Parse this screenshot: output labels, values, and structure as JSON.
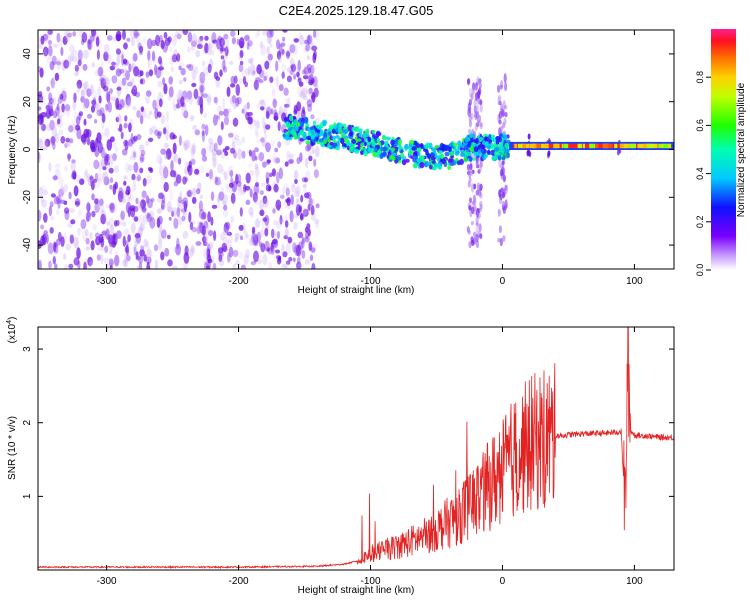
{
  "title": "C2E4.2025.129.18.47.G05",
  "colors": {
    "scatter_purple": "#7b1fe6",
    "snr_line": "#e32222",
    "axis": "#000000"
  },
  "chart_data": [
    {
      "type": "heatmap",
      "xlabel": "Height of straight line (km)",
      "ylabel": "Frequency (Hz)",
      "xlim": [
        -352,
        130
      ],
      "ylim": [
        -50,
        50
      ],
      "x_ticks": [
        -300,
        -200,
        -100,
        0,
        100
      ],
      "x_tick_labels": [
        "-300",
        "-200",
        "-100",
        "0",
        "100"
      ],
      "y_ticks": [
        -40,
        -20,
        0,
        20,
        40
      ],
      "y_tick_labels": [
        "-40",
        "-20",
        "0",
        "20",
        "40"
      ],
      "noise_region_x": [
        -352,
        -140
      ],
      "trace": {
        "description_x": [
          -160,
          -140,
          -120,
          -100,
          -80,
          -60,
          -40,
          -25,
          -10,
          5,
          20,
          40,
          60,
          80,
          100,
          130
        ],
        "freq_hz": [
          9,
          7,
          5,
          3,
          0,
          -3,
          -3,
          1,
          1,
          1.5,
          1.5,
          1.5,
          1.5,
          1.5,
          1.5,
          1.5
        ]
      },
      "colorbar": {
        "label": "Normalized spectral amplitude",
        "ticks": [
          0.0,
          0.2,
          0.4,
          0.6,
          0.8
        ],
        "tick_labels": [
          "0.0",
          "0.2",
          "0.4",
          "0.6",
          "0.8"
        ],
        "range": [
          0,
          1
        ]
      }
    },
    {
      "type": "line",
      "xlabel": "Height of straight line (km)",
      "ylabel": "SNR (10 * v/v)",
      "y_multiplier": "(x10",
      "y_multiplier_exp": "4",
      "y_multiplier_close": ")",
      "xlim": [
        -352,
        130
      ],
      "ylim": [
        0,
        3.3
      ],
      "x_ticks": [
        -300,
        -200,
        -100,
        0,
        100
      ],
      "x_tick_labels": [
        "-300",
        "-200",
        "-100",
        "0",
        "100"
      ],
      "y_ticks": [
        1,
        2,
        3
      ],
      "y_tick_labels": [
        "1",
        "2",
        "3"
      ],
      "series": [
        {
          "x": [
            -352,
            -300,
            -200,
            -140,
            -120,
            -110,
            -100,
            -80,
            -60,
            -40,
            -20,
            -10,
            0,
            10,
            20,
            30,
            40,
            60,
            80,
            90,
            93,
            95,
            97,
            100,
            110,
            120,
            130
          ],
          "y": [
            0.04,
            0.04,
            0.04,
            0.05,
            0.08,
            0.12,
            0.22,
            0.32,
            0.45,
            0.65,
            0.95,
            1.15,
            1.35,
            1.55,
            1.7,
            1.78,
            1.82,
            1.85,
            1.86,
            1.88,
            0.8,
            2.9,
            1.9,
            1.83,
            1.82,
            1.8,
            1.8
          ]
        }
      ]
    }
  ]
}
